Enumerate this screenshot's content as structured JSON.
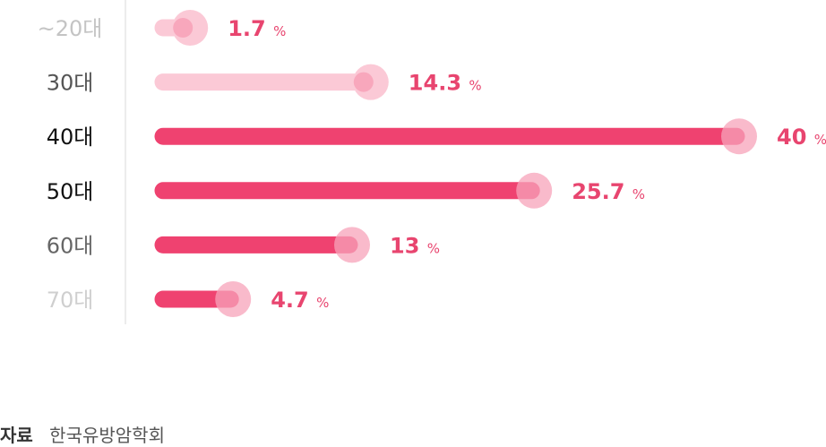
{
  "chart_data": {
    "type": "bar",
    "orientation": "horizontal",
    "categories": [
      "~20대",
      "30대",
      "40대",
      "50대",
      "60대",
      "70대"
    ],
    "values": [
      1.7,
      14.3,
      40,
      25.7,
      13,
      4.7
    ],
    "value_labels": [
      "1.7",
      "14.3",
      "40",
      "25.7",
      "13",
      "4.7"
    ],
    "unit": "%",
    "xlim": [
      0,
      40
    ],
    "grid": false,
    "legend": "none",
    "colors": {
      "bar_strong": "#ef4270",
      "bar_light": "#fbc9d6",
      "knob_halo": "#f7a3b9",
      "value_text": "#e8456f",
      "axis_line": "#e6e6e6"
    },
    "bar_styles": [
      "light",
      "light",
      "strong",
      "strong",
      "strong",
      "strong"
    ],
    "label_colors": [
      "#c4c4c4",
      "#555555",
      "#111111",
      "#111111",
      "#666666",
      "#cfcfcf"
    ]
  },
  "source": {
    "label": "자료",
    "text": "한국유방암학회"
  }
}
